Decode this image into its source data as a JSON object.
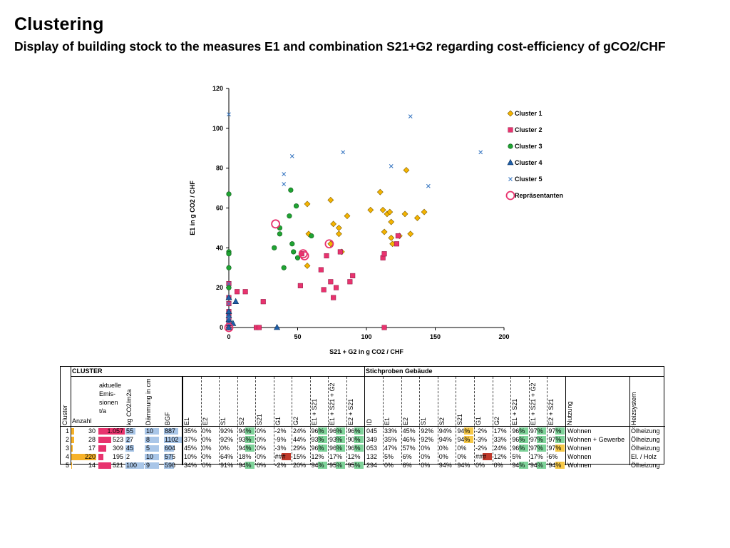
{
  "page": {
    "title": "Clustering",
    "subtitle": "Display of building stock to the measures E1 and combination S21+G2 regarding cost-efficiency of gCO2/CHF"
  },
  "colors": {
    "cluster1": "#f5b400",
    "cluster2": "#e8336e",
    "cluster3": "#1fa332",
    "cluster4": "#1f5fa8",
    "cluster5": "#3a78c2",
    "representative": "#e8336e",
    "bar_orange": "#f7b229",
    "bar_pink": "#e8336e",
    "bar_blue": "#a9c6e8",
    "highlight_green": "#7fd39a",
    "highlight_yellow": "#f7c948",
    "highlight_red": "#c0392b"
  },
  "chart_data": {
    "type": "scatter",
    "xlabel": "S21 + G2 in g CO2 / CHF",
    "ylabel": "E1 in g CO2 / CHF",
    "xlim": [
      0,
      200
    ],
    "ylim": [
      0,
      120
    ],
    "xticks": [
      "0",
      "50",
      "100",
      "150",
      "200"
    ],
    "yticks": [
      "0",
      "20",
      "40",
      "60",
      "80",
      "100",
      "120"
    ],
    "legend_position": "right",
    "series": [
      {
        "name": "Cluster 1",
        "marker": "diamond",
        "points": [
          [
            57,
            62
          ],
          [
            58,
            47
          ],
          [
            57,
            31
          ],
          [
            74,
            64
          ],
          [
            76,
            52
          ],
          [
            80,
            50
          ],
          [
            80,
            47
          ],
          [
            82,
            38
          ],
          [
            86,
            56
          ],
          [
            74,
            42
          ],
          [
            103,
            59
          ],
          [
            110,
            68
          ],
          [
            112,
            59
          ],
          [
            113,
            48
          ],
          [
            115,
            57
          ],
          [
            117,
            58
          ],
          [
            118,
            53
          ],
          [
            118,
            45
          ],
          [
            119,
            42
          ],
          [
            124,
            46
          ],
          [
            128,
            57
          ],
          [
            129,
            79
          ],
          [
            132,
            47
          ],
          [
            137,
            55
          ],
          [
            142,
            58
          ]
        ]
      },
      {
        "name": "Cluster 2",
        "marker": "square",
        "points": [
          [
            0,
            0
          ],
          [
            0,
            2
          ],
          [
            0,
            4
          ],
          [
            0,
            7
          ],
          [
            0,
            8
          ],
          [
            0,
            12
          ],
          [
            0,
            15
          ],
          [
            0,
            22
          ],
          [
            6,
            18
          ],
          [
            12,
            18
          ],
          [
            25,
            13
          ],
          [
            20,
            0
          ],
          [
            22,
            0
          ],
          [
            52,
            21
          ],
          [
            53,
            37
          ],
          [
            67,
            29
          ],
          [
            69,
            19
          ],
          [
            71,
            36
          ],
          [
            74,
            23
          ],
          [
            76,
            15
          ],
          [
            78,
            20
          ],
          [
            81,
            38
          ],
          [
            88,
            23
          ],
          [
            90,
            26
          ],
          [
            112,
            35
          ],
          [
            113,
            37
          ],
          [
            113,
            0
          ],
          [
            122,
            42
          ],
          [
            123,
            46
          ]
        ]
      },
      {
        "name": "Cluster 3",
        "marker": "circle",
        "points": [
          [
            0,
            67
          ],
          [
            0,
            38
          ],
          [
            0,
            37
          ],
          [
            0,
            30
          ],
          [
            0,
            20
          ],
          [
            37,
            50
          ],
          [
            37,
            47
          ],
          [
            33,
            40
          ],
          [
            40,
            30
          ],
          [
            44,
            56
          ],
          [
            45,
            69
          ],
          [
            46,
            42
          ],
          [
            47,
            38
          ],
          [
            49,
            61
          ],
          [
            50,
            35
          ],
          [
            60,
            46
          ]
        ]
      },
      {
        "name": "Cluster 4",
        "marker": "triangle",
        "points": [
          [
            0,
            0
          ],
          [
            0,
            2
          ],
          [
            0,
            4
          ],
          [
            0,
            6
          ],
          [
            0,
            8
          ],
          [
            0,
            15
          ],
          [
            3,
            2
          ],
          [
            5,
            13
          ],
          [
            35,
            0
          ]
        ]
      },
      {
        "name": "Cluster 5",
        "marker": "cross",
        "points": [
          [
            0,
            107
          ],
          [
            0,
            22
          ],
          [
            0,
            12
          ],
          [
            0,
            5
          ],
          [
            0,
            2
          ],
          [
            40,
            77
          ],
          [
            40,
            72
          ],
          [
            46,
            86
          ],
          [
            83,
            88
          ],
          [
            118,
            81
          ],
          [
            132,
            106
          ],
          [
            145,
            71
          ],
          [
            183,
            88
          ]
        ]
      },
      {
        "name": "Repräsentanten",
        "marker": "ring",
        "points": [
          [
            0,
            0
          ],
          [
            34,
            52
          ],
          [
            55,
            36
          ],
          [
            73,
            42
          ],
          [
            54,
            37
          ]
        ]
      }
    ]
  },
  "table": {
    "group_left": "CLUSTER",
    "group_right": "Stichproben Gebäude",
    "left_headers": [
      "Cluster",
      "Anzahl",
      "aktuelle Emis-sionen t/a",
      "kg CO2/m2a",
      "Dämmung in cm",
      "BGF"
    ],
    "left_pct_headers": [
      "E1",
      "E2",
      "S1",
      "S2",
      "S21",
      "G1",
      "G2",
      "E1 + S21",
      "E1 + S21 + G2",
      "E2 + S21"
    ],
    "right_headers": [
      "ID",
      "E1",
      "E2",
      "S1",
      "S2",
      "S21",
      "G1",
      "G2",
      "E1 + S21",
      "E1 + S21 + G2",
      "E2 + S21",
      "Nutzung",
      "Heizsystem"
    ],
    "rows": [
      {
        "cluster": "1",
        "anzahl": "30",
        "emissionen": "1.057",
        "kg": "55",
        "daemmung": "10",
        "bgf": "887",
        "left": [
          "35%",
          "0%",
          "92%",
          "94%",
          "0%",
          "-2%",
          "24%",
          "96%",
          "96%",
          "96%"
        ],
        "id": "045",
        "right": [
          "33%",
          "45%",
          "92%",
          "94%",
          "94%",
          "-2%",
          "17%",
          "96%",
          "97%",
          "97%"
        ],
        "nutzung": "Wohnen",
        "heizsystem": "Ölheizung"
      },
      {
        "cluster": "2",
        "anzahl": "28",
        "emissionen": "523",
        "kg": "27",
        "daemmung": "8",
        "bgf": "1102",
        "left": [
          "37%",
          "0%",
          "92%",
          "93%",
          "0%",
          "-9%",
          "44%",
          "93%",
          "93%",
          "90%"
        ],
        "id": "349",
        "right": [
          "35%",
          "46%",
          "92%",
          "94%",
          "94%",
          "-3%",
          "33%",
          "96%",
          "97%",
          "97%"
        ],
        "nutzung": "Wohnen + Gewerbe",
        "heizsystem": "Ölheizung"
      },
      {
        "cluster": "3",
        "anzahl": "17",
        "emissionen": "309",
        "kg": "45",
        "daemmung": "5",
        "bgf": "604",
        "left": [
          "45%",
          "0%",
          "0%",
          "94%",
          "0%",
          "-3%",
          "29%",
          "96%",
          "96%",
          "96%"
        ],
        "id": "053",
        "right": [
          "47%",
          "57%",
          "0%",
          "0%",
          "0%",
          "-2%",
          "24%",
          "96%",
          "97%",
          "97%"
        ],
        "nutzung": "Wohnen",
        "heizsystem": "Ölheizung"
      },
      {
        "cluster": "4",
        "anzahl": "220",
        "emissionen": "195",
        "kg": "2",
        "daemmung": "10",
        "bgf": "575",
        "left": [
          "10%",
          "0%",
          "64%",
          "18%",
          "0%",
          "###",
          "15%",
          "12%",
          "17%",
          "12%"
        ],
        "id": "132",
        "right": [
          "5%",
          "6%",
          "0%",
          "0%",
          "0%",
          "###",
          "12%",
          "5%",
          "17%",
          "6%"
        ],
        "nutzung": "Wohnen",
        "heizsystem": "El. / Holz"
      },
      {
        "cluster": "5",
        "anzahl": "14",
        "emissionen": "521",
        "kg": "100",
        "daemmung": "9",
        "bgf": "596",
        "left": [
          "34%",
          "0%",
          "91%",
          "94%",
          "0%",
          "-2%",
          "20%",
          "94%",
          "95%",
          "95%"
        ],
        "id": "294",
        "right": [
          "0%",
          "6%",
          "0%",
          "94%",
          "94%",
          "0%",
          "0%",
          "94%",
          "94%",
          "94%"
        ],
        "nutzung": "Wohnen",
        "heizsystem": "Ölheizung"
      }
    ],
    "bars": {
      "anzahl": [
        0.14,
        0.13,
        0.08,
        1.0,
        0.06
      ],
      "emissionen": [
        1.0,
        0.49,
        0.29,
        0.18,
        0.49
      ],
      "kg": [
        0.55,
        0.27,
        0.45,
        0.02,
        1.0
      ],
      "bgf": [
        0.8,
        1.0,
        0.55,
        0.52,
        0.54
      ]
    }
  }
}
